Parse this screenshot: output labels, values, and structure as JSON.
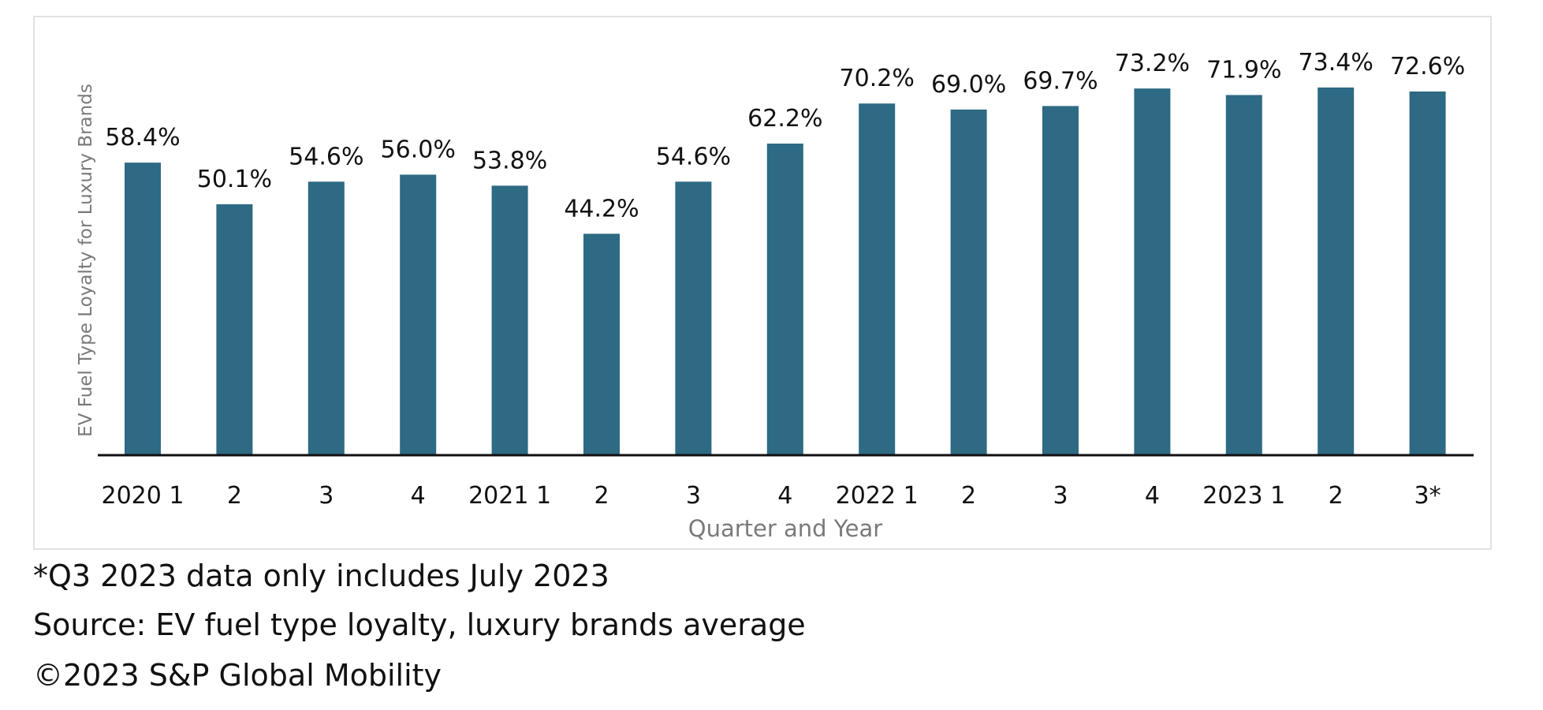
{
  "chart_data": {
    "type": "bar",
    "title": "",
    "xlabel": "Quarter and Year",
    "ylabel": "EV Fuel Type Loyalty for Luxury Brands",
    "categories": [
      "2020 1",
      "2",
      "3",
      "4",
      "2021 1",
      "2",
      "3",
      "4",
      "2022 1",
      "2",
      "3",
      "4",
      "2023 1",
      "2",
      "3*"
    ],
    "values": [
      58.4,
      50.1,
      54.6,
      56.0,
      53.8,
      44.2,
      54.6,
      62.2,
      70.2,
      69.0,
      69.7,
      73.2,
      71.9,
      73.4,
      72.6
    ],
    "data_labels": [
      "58.4%",
      "50.1%",
      "54.6%",
      "56.0%",
      "53.8%",
      "44.2%",
      "54.6%",
      "62.2%",
      "70.2%",
      "69.0%",
      "69.7%",
      "73.2%",
      "71.9%",
      "73.4%",
      "72.6%"
    ],
    "ylim": [
      0,
      80
    ],
    "grid": false,
    "bar_color": "#2e6a84"
  },
  "notes": [
    "*Q3 2023 data only includes July 2023",
    "Source: EV fuel type loyalty, luxury brands average",
    "©2023 S&P Global Mobility"
  ]
}
